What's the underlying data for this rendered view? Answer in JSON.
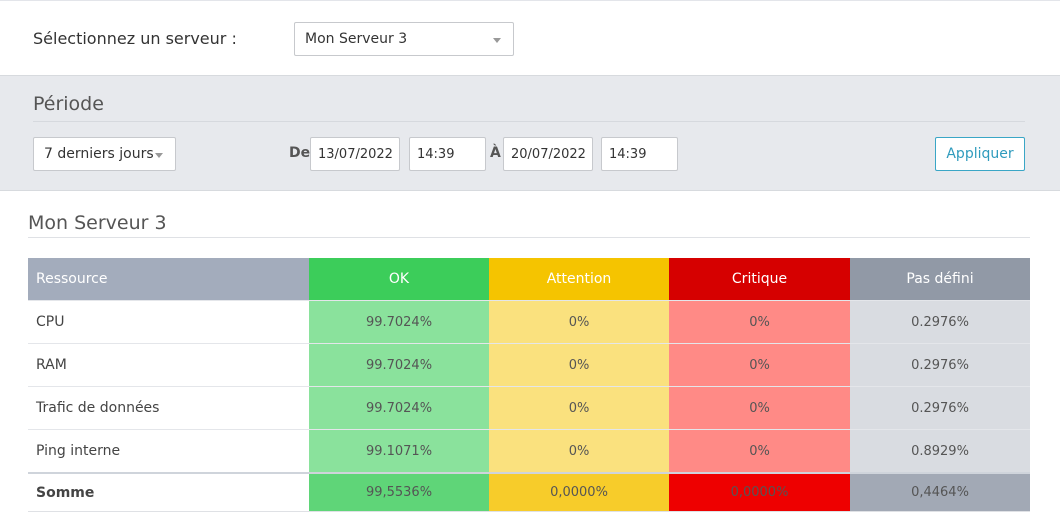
{
  "server": {
    "label": "Sélectionnez un serveur :",
    "selected": "Mon Serveur 3"
  },
  "period": {
    "title": "Période",
    "range_selected": "7 derniers jours",
    "from_label": "De",
    "from_date": "13/07/2022",
    "from_time": "14:39",
    "to_label": "À",
    "to_date": "20/07/2022",
    "to_time": "14:39",
    "apply_label": "Appliquer"
  },
  "report": {
    "title": "Mon Serveur 3",
    "headers": [
      "Ressource",
      "OK",
      "Attention",
      "Critique",
      "Pas défini"
    ],
    "rows": [
      {
        "resource": "CPU",
        "ok": "99.7024%",
        "attention": "0%",
        "critique": "0%",
        "undefined": "0.2976%"
      },
      {
        "resource": "RAM",
        "ok": "99.7024%",
        "attention": "0%",
        "critique": "0%",
        "undefined": "0.2976%"
      },
      {
        "resource": "Trafic de données",
        "ok": "99.7024%",
        "attention": "0%",
        "critique": "0%",
        "undefined": "0.2976%"
      },
      {
        "resource": "Ping interne",
        "ok": "99.1071%",
        "attention": "0%",
        "critique": "0%",
        "undefined": "0.8929%"
      }
    ],
    "total": {
      "resource": "Somme",
      "ok": "99,5536%",
      "attention": "0,0000%",
      "critique": "0,0000%",
      "undefined": "0,4464%"
    }
  },
  "colors": {
    "ok": "#3ccd5a",
    "attention": "#f5c400",
    "critique": "#d60000",
    "undefined": "#9199a6",
    "accent": "#2f9bbd"
  },
  "icons": {
    "dropdown": "chevron-down-icon"
  }
}
